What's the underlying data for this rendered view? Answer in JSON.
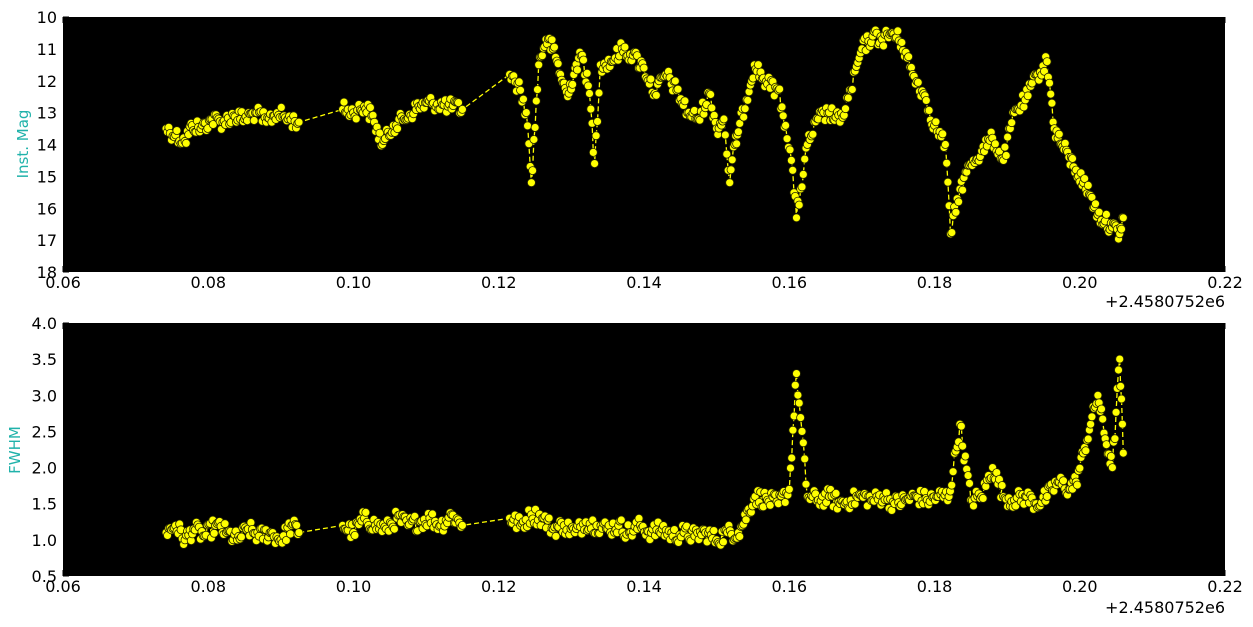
{
  "colors": {
    "plot_background": "#000000",
    "marker_fill": "#ffff00",
    "marker_edge": "#222200",
    "line": "#ffff00",
    "ylabel": "#20b2aa",
    "figure_background": "#ffffff"
  },
  "chart_data": [
    {
      "type": "scatter",
      "line_style": "dashed",
      "marker": "circle",
      "title": "",
      "xlabel": "",
      "ylabel": "Inst. Mag",
      "x_offset_label": "+2.4580752e6",
      "xlim": [
        0.06,
        0.22
      ],
      "ylim": [
        18,
        10
      ],
      "y_inverted": true,
      "grid": false,
      "xticks": [
        "0.06",
        "0.08",
        "0.10",
        "0.12",
        "0.14",
        "0.16",
        "0.18",
        "0.20",
        "0.22"
      ],
      "yticks": [
        "10",
        "11",
        "12",
        "13",
        "14",
        "15",
        "16",
        "17",
        "18"
      ],
      "series": [
        {
          "x": [
            0.0742,
            0.0755,
            0.0768,
            0.0778,
            0.079,
            0.0805,
            0.082,
            0.0835,
            0.085,
            0.0865,
            0.088,
            0.0895,
            0.091,
            0.0925,
            0.0985,
            0.1,
            0.1015,
            0.1025,
            0.104,
            0.1055,
            0.107,
            0.109,
            0.111,
            0.113,
            0.115,
            0.1215,
            0.123,
            0.1238,
            0.1245,
            0.1255,
            0.1265,
            0.1275,
            0.1285,
            0.1295,
            0.1305,
            0.1315,
            0.1325,
            0.1332,
            0.134,
            0.1355,
            0.137,
            0.1385,
            0.14,
            0.1415,
            0.143,
            0.1445,
            0.146,
            0.1475,
            0.149,
            0.15,
            0.151,
            0.1518,
            0.1525,
            0.153,
            0.1552,
            0.157,
            0.1585,
            0.1595,
            0.1603,
            0.161,
            0.1625,
            0.164,
            0.1655,
            0.167,
            0.1685,
            0.17,
            0.1715,
            0.1728,
            0.1742,
            0.1755,
            0.177,
            0.1785,
            0.18,
            0.1815,
            0.1822,
            0.1835,
            0.185,
            0.1865,
            0.188,
            0.1895,
            0.191,
            0.1925,
            0.1942,
            0.1955,
            0.1965,
            0.1975,
            0.1985,
            0.1995,
            0.2005,
            0.2015,
            0.2025,
            0.2035,
            0.2045,
            0.2055,
            0.206
          ],
          "y": [
            13.5,
            13.7,
            13.9,
            13.4,
            13.5,
            13.2,
            13.3,
            13.1,
            13.2,
            13.0,
            13.3,
            13.0,
            13.2,
            13.3,
            12.9,
            13.0,
            12.8,
            13.1,
            14.0,
            13.4,
            13.2,
            12.8,
            12.7,
            12.8,
            12.9,
            11.8,
            12.3,
            13.0,
            15.2,
            11.5,
            10.7,
            11.0,
            11.8,
            12.5,
            11.6,
            11.2,
            12.4,
            14.6,
            11.5,
            11.4,
            11.0,
            11.2,
            11.6,
            12.4,
            11.8,
            12.3,
            13.0,
            13.2,
            12.4,
            13.5,
            13.2,
            15.2,
            14.0,
            13.6,
            11.5,
            12.1,
            12.3,
            13.4,
            14.5,
            16.3,
            14.0,
            13.2,
            13.0,
            13.3,
            12.3,
            11.0,
            10.6,
            10.7,
            10.5,
            10.8,
            11.8,
            12.4,
            13.4,
            14.0,
            16.8,
            15.4,
            14.6,
            14.2,
            13.8,
            14.5,
            13.0,
            12.6,
            11.8,
            11.4,
            13.5,
            14.0,
            14.4,
            14.8,
            15.2,
            15.6,
            16.2,
            16.4,
            16.6,
            16.8,
            16.3
          ]
        }
      ]
    },
    {
      "type": "scatter",
      "line_style": "dashed",
      "marker": "circle",
      "title": "",
      "xlabel": "",
      "ylabel": "FWHM",
      "x_offset_label": "+2.4580752e6",
      "xlim": [
        0.06,
        0.22
      ],
      "ylim": [
        0.5,
        4.0
      ],
      "y_inverted": false,
      "grid": false,
      "xticks": [
        "0.06",
        "0.08",
        "0.10",
        "0.12",
        "0.14",
        "0.16",
        "0.18",
        "0.20",
        "0.22"
      ],
      "yticks": [
        "0.5",
        "1.0",
        "1.5",
        "2.0",
        "2.5",
        "3.0",
        "3.5",
        "4.0"
      ],
      "series": [
        {
          "x": [
            0.0742,
            0.0755,
            0.0768,
            0.078,
            0.0795,
            0.081,
            0.0825,
            0.084,
            0.0855,
            0.087,
            0.0885,
            0.09,
            0.0915,
            0.0925,
            0.0985,
            0.1,
            0.1015,
            0.103,
            0.1045,
            0.106,
            0.1075,
            0.109,
            0.1105,
            0.112,
            0.1135,
            0.115,
            0.1215,
            0.123,
            0.1245,
            0.126,
            0.1275,
            0.129,
            0.1305,
            0.132,
            0.1335,
            0.135,
            0.1365,
            0.138,
            0.1395,
            0.141,
            0.1425,
            0.144,
            0.1455,
            0.147,
            0.1485,
            0.15,
            0.1515,
            0.153,
            0.1553,
            0.157,
            0.1585,
            0.16,
            0.161,
            0.1625,
            0.164,
            0.1655,
            0.167,
            0.1685,
            0.17,
            0.1715,
            0.173,
            0.1745,
            0.176,
            0.1775,
            0.179,
            0.1805,
            0.182,
            0.1835,
            0.185,
            0.1865,
            0.188,
            0.1895,
            0.191,
            0.1925,
            0.194,
            0.1955,
            0.197,
            0.1985,
            0.1995,
            0.2005,
            0.2015,
            0.2025,
            0.2035,
            0.2045,
            0.2055,
            0.206
          ],
          "y": [
            1.1,
            1.2,
            1.0,
            1.15,
            1.05,
            1.2,
            1.1,
            1.0,
            1.15,
            1.05,
            1.1,
            1.0,
            1.2,
            1.1,
            1.2,
            1.1,
            1.3,
            1.2,
            1.15,
            1.3,
            1.2,
            1.25,
            1.3,
            1.2,
            1.35,
            1.2,
            1.3,
            1.2,
            1.35,
            1.3,
            1.15,
            1.2,
            1.1,
            1.25,
            1.2,
            1.15,
            1.2,
            1.1,
            1.2,
            1.1,
            1.15,
            1.05,
            1.1,
            1.05,
            1.1,
            1.0,
            1.1,
            1.1,
            1.6,
            1.55,
            1.5,
            1.7,
            3.3,
            1.6,
            1.55,
            1.6,
            1.5,
            1.55,
            1.6,
            1.55,
            1.6,
            1.5,
            1.55,
            1.6,
            1.55,
            1.6,
            1.6,
            2.6,
            1.55,
            1.6,
            2.0,
            1.6,
            1.55,
            1.6,
            1.5,
            1.6,
            1.8,
            1.7,
            1.8,
            2.2,
            2.6,
            3.0,
            2.4,
            2.0,
            3.5,
            2.2
          ]
        }
      ]
    }
  ]
}
